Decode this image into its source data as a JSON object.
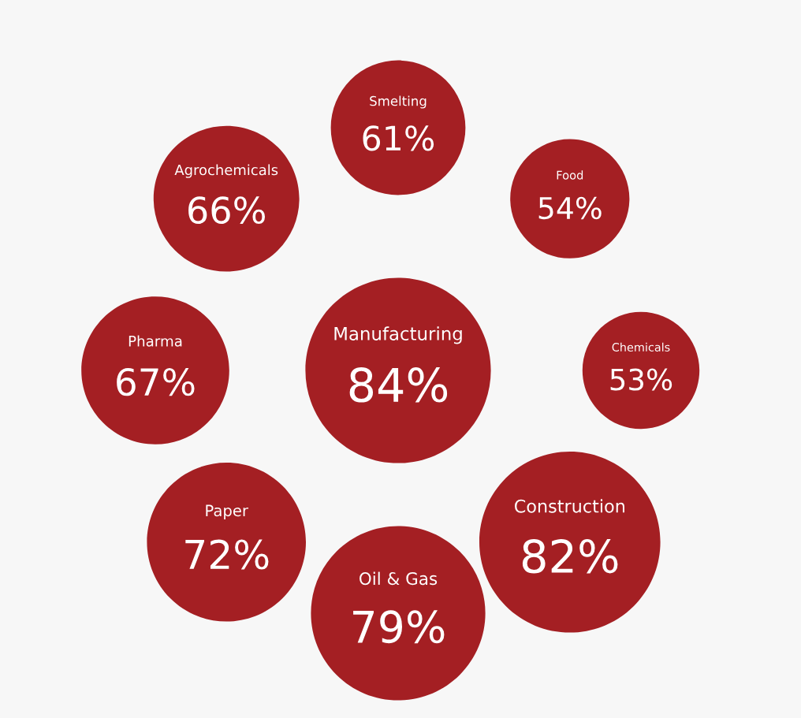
{
  "chart_data": {
    "type": "other",
    "categories": [
      "Manufacturing",
      "Smelting",
      "Food",
      "Chemicals",
      "Construction",
      "Oil & Gas",
      "Paper",
      "Pharma",
      "Agrochemicals"
    ],
    "values": [
      84,
      61,
      54,
      53,
      82,
      79,
      72,
      67,
      66
    ],
    "value_labels": [
      "84%",
      "61%",
      "54%",
      "53%",
      "82%",
      "79%",
      "72%",
      "67%",
      "66%"
    ],
    "color": "#a41f23"
  }
}
